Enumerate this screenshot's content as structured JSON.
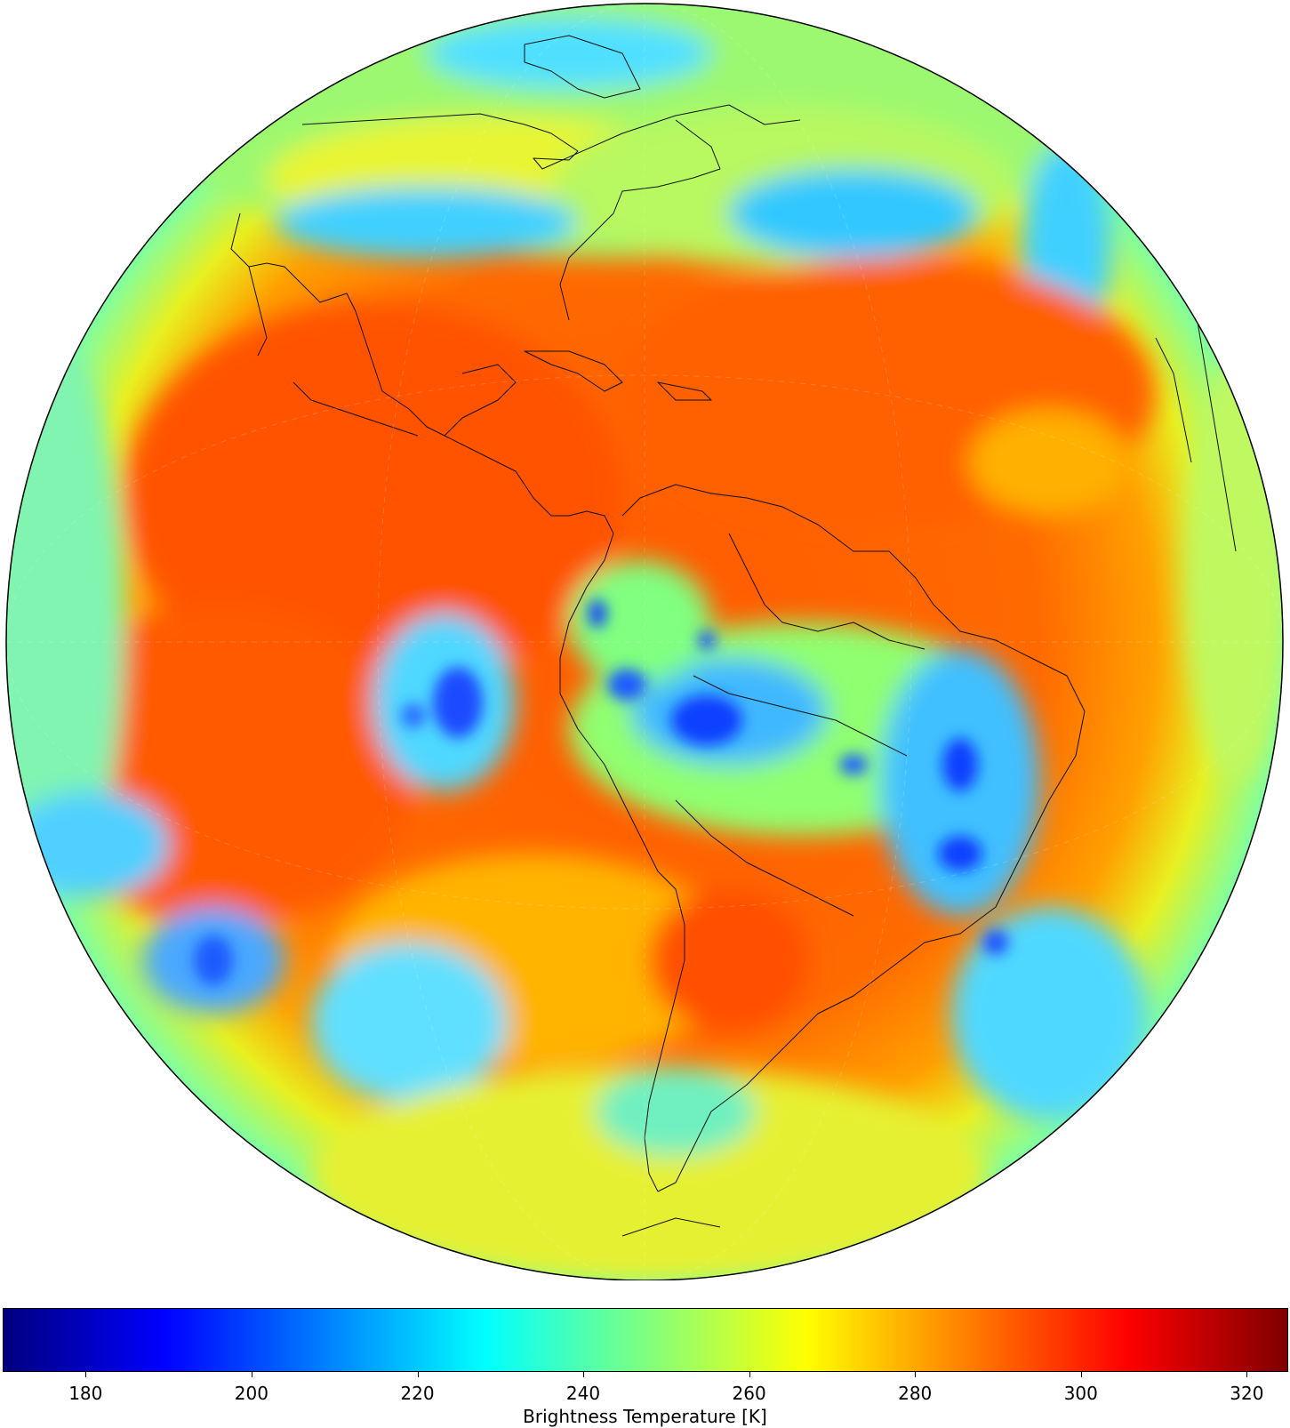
{
  "figure": {
    "map_description_icon": "globe-icon",
    "colormap": "jet",
    "colormap_stops": [
      "#00007f",
      "#0000ff",
      "#007fff",
      "#00ffff",
      "#7fff7f",
      "#ffff00",
      "#ff7f00",
      "#ff0000",
      "#7f0000"
    ]
  },
  "colorbar": {
    "label": "Brightness Temperature [K]",
    "vmin": 170,
    "vmax": 325,
    "ticks": [
      {
        "value": 180,
        "label": "180"
      },
      {
        "value": 200,
        "label": "200"
      },
      {
        "value": 220,
        "label": "220"
      },
      {
        "value": 240,
        "label": "240"
      },
      {
        "value": 260,
        "label": "260"
      },
      {
        "value": 280,
        "label": "280"
      },
      {
        "value": 300,
        "label": "300"
      },
      {
        "value": 320,
        "label": "320"
      }
    ]
  }
}
